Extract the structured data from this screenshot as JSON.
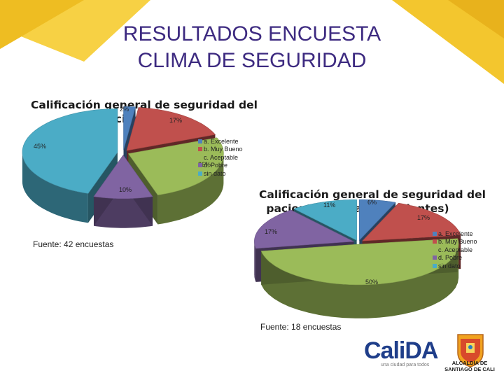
{
  "slide": {
    "title_line1": "RESULTADOS ENCUESTA",
    "title_line2": "CLIMA DE SEGURIDAD"
  },
  "chart_data": [
    {
      "type": "pie",
      "style": "3d-exploded",
      "title": "Calificación general de seguridad del paciente",
      "title_lines": [
        "Calificación general de seguridad del",
        "paciente"
      ],
      "categories": [
        "a. Excelente",
        "b. Muy Bueno",
        "c. Aceptable",
        "d. Pobre",
        "sin dato"
      ],
      "values": [
        2,
        17,
        26,
        10,
        45
      ],
      "labels": [
        "2%",
        "17%",
        "26%",
        "10%",
        "45%"
      ],
      "colors": [
        "#4f81bd",
        "#c0504d",
        "#9bbb59",
        "#8064a2",
        "#4bacc6"
      ],
      "legend_position": "right",
      "source": "Fuente: 42 encuestas"
    },
    {
      "type": "pie",
      "style": "3d-exploded",
      "title": "Calificación general de seguridad del paciente (contacto pacientes)",
      "title_lines": [
        "Calificación general de seguridad del",
        "paciente (contacto pacientes)"
      ],
      "categories": [
        "a. Excelente",
        "b. Muy Bueno",
        "c. Aceptable",
        "d. Pobre",
        "sin dato"
      ],
      "values": [
        6,
        17,
        50,
        17,
        11
      ],
      "labels": [
        "6%",
        "17%",
        "50%",
        "17%",
        "11%"
      ],
      "colors": [
        "#4f81bd",
        "#c0504d",
        "#9bbb59",
        "#8064a2",
        "#4bacc6"
      ],
      "legend_position": "right",
      "source": "Fuente: 18 encuestas"
    }
  ],
  "logos": {
    "calida_main": "CaliDA",
    "calida_tagline": "una ciudad para todos",
    "seal_line1": "ALCALDÍA DE",
    "seal_line2": "SANTIAGO DE CALI"
  }
}
